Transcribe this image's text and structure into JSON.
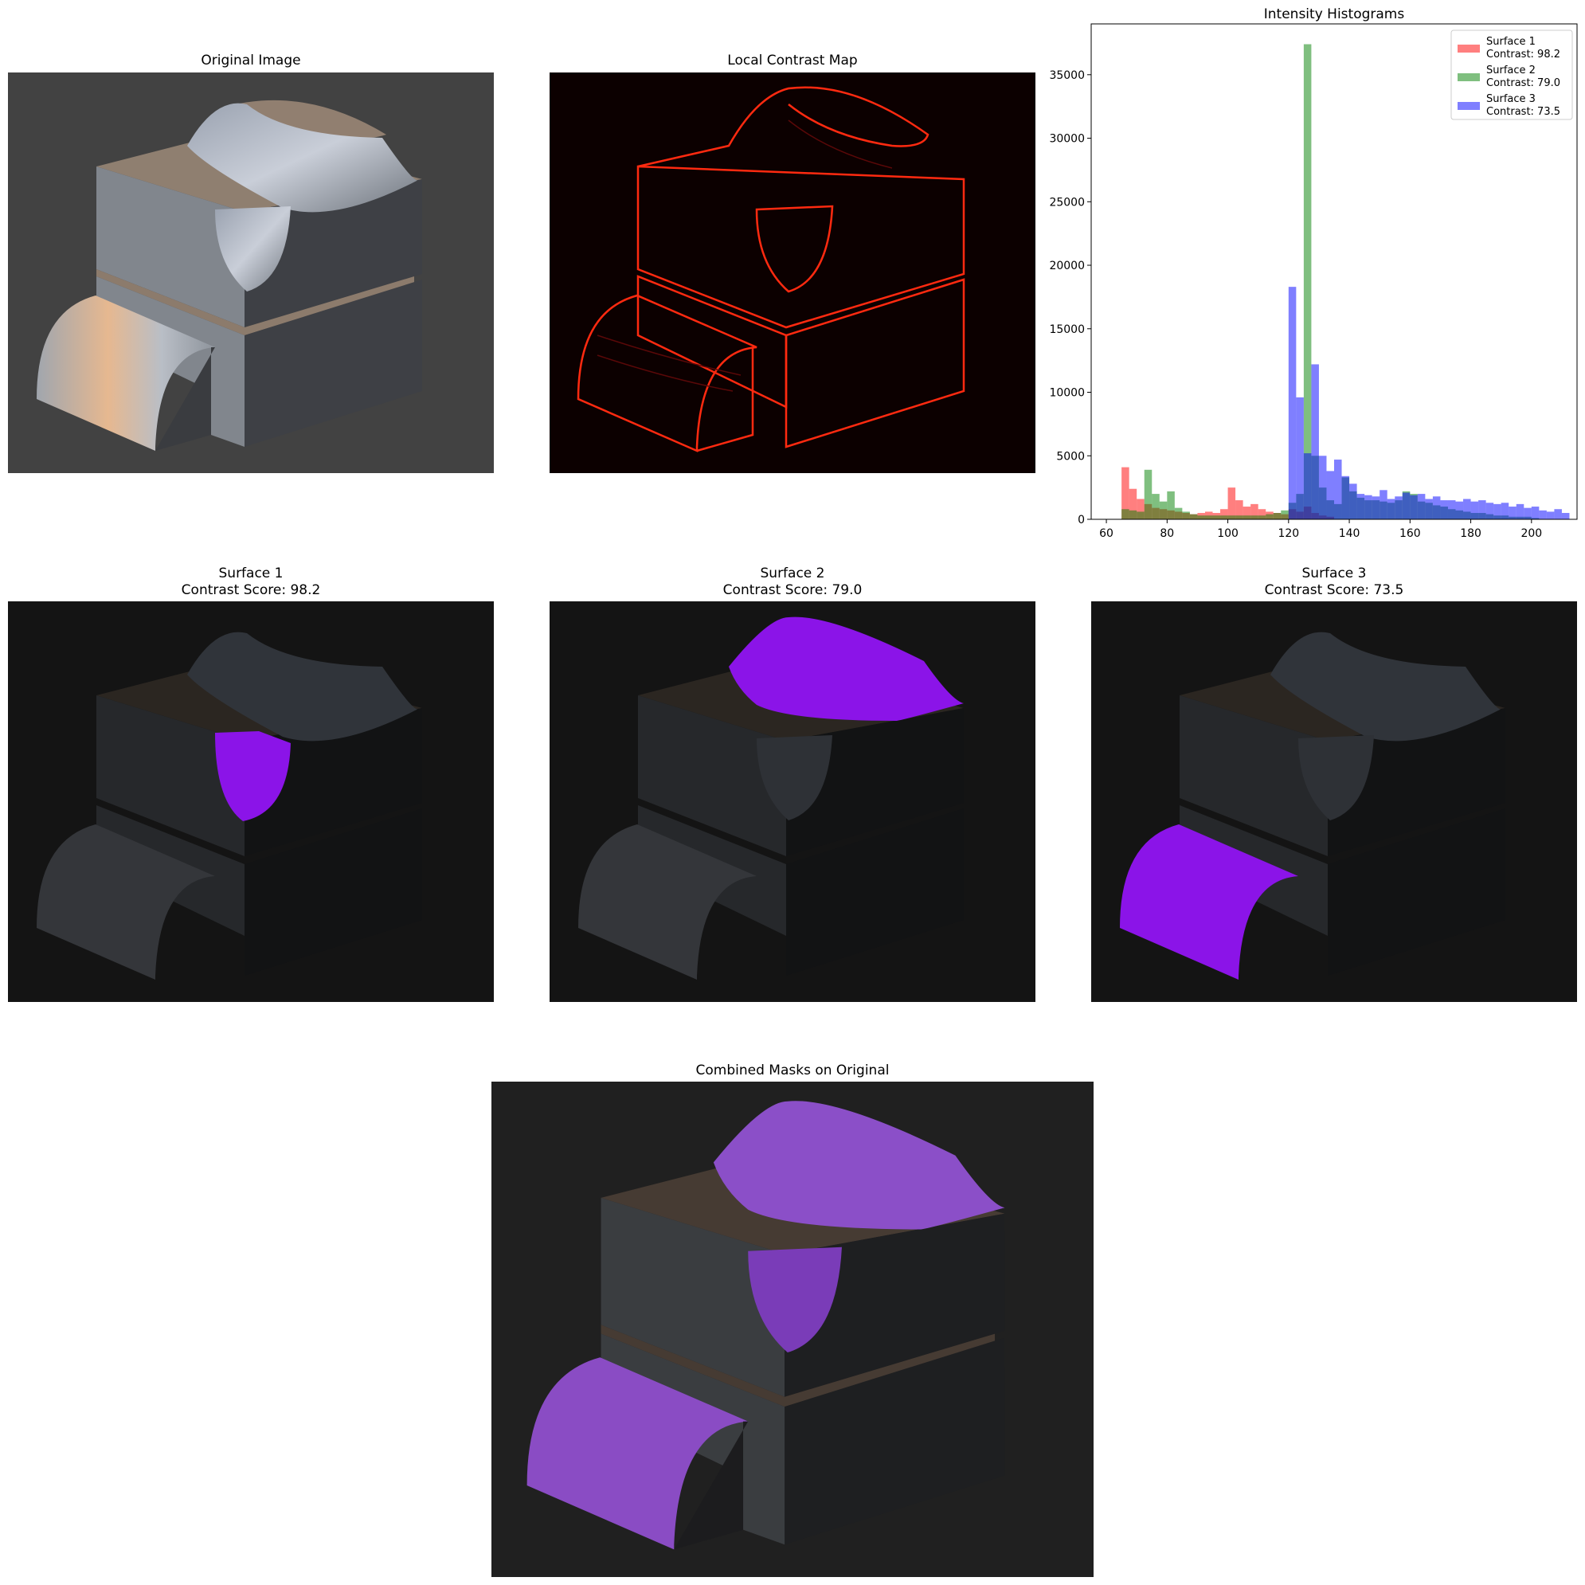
{
  "panels": {
    "original": {
      "title": "Original Image"
    },
    "contrast": {
      "title": "Local Contrast Map"
    },
    "histogram": {
      "title": "Intensity Histograms"
    },
    "surface1": {
      "title": "Surface 1",
      "subtitle": "Contrast Score: 98.2"
    },
    "surface2": {
      "title": "Surface 2",
      "subtitle": "Contrast Score: 79.0"
    },
    "surface3": {
      "title": "Surface 3",
      "subtitle": "Contrast Score: 73.5"
    },
    "combined": {
      "title": "Combined Masks on Original"
    }
  },
  "colors": {
    "mask": "#8b14e8",
    "surface1": "#ff0000",
    "surface2": "#008000",
    "surface3": "#0000ff",
    "contrast_edge": "#ff2a10"
  },
  "chart_data": {
    "type": "bar",
    "title": "Intensity Histograms",
    "xlabel": "",
    "ylabel": "",
    "xlim": [
      55,
      215
    ],
    "ylim": [
      0,
      39000
    ],
    "xticks": [
      60,
      80,
      100,
      120,
      140,
      160,
      180,
      200
    ],
    "yticks": [
      0,
      5000,
      10000,
      15000,
      20000,
      25000,
      30000,
      35000
    ],
    "legend_position": "top-right",
    "bin_width": 2.5,
    "series": [
      {
        "name": "Surface 1",
        "label": "Contrast: 98.2",
        "color": "#ff0000",
        "bins": [
          [
            65,
            4100
          ],
          [
            67.5,
            2400
          ],
          [
            70,
            1600
          ],
          [
            72.5,
            1200
          ],
          [
            75,
            900
          ],
          [
            77.5,
            800
          ],
          [
            80,
            700
          ],
          [
            82.5,
            600
          ],
          [
            85,
            500
          ],
          [
            87.5,
            400
          ],
          [
            90,
            500
          ],
          [
            92.5,
            600
          ],
          [
            95,
            500
          ],
          [
            97.5,
            800
          ],
          [
            100,
            2500
          ],
          [
            102.5,
            1500
          ],
          [
            105,
            1000
          ],
          [
            107.5,
            1200
          ],
          [
            110,
            800
          ],
          [
            112.5,
            600
          ],
          [
            115,
            500
          ],
          [
            117.5,
            400
          ],
          [
            120,
            800
          ],
          [
            122.5,
            600
          ],
          [
            125,
            1000
          ],
          [
            127.5,
            500
          ],
          [
            130,
            300
          ],
          [
            132.5,
            200
          ]
        ]
      },
      {
        "name": "Surface 2",
        "label": "Contrast: 79.0",
        "color": "#008000",
        "bins": [
          [
            65,
            800
          ],
          [
            67.5,
            700
          ],
          [
            70,
            600
          ],
          [
            72.5,
            3900
          ],
          [
            75,
            2000
          ],
          [
            77.5,
            1400
          ],
          [
            80,
            2200
          ],
          [
            82.5,
            900
          ],
          [
            85,
            600
          ],
          [
            87.5,
            400
          ],
          [
            90,
            300
          ],
          [
            92.5,
            300
          ],
          [
            95,
            300
          ],
          [
            97.5,
            300
          ],
          [
            100,
            300
          ],
          [
            102.5,
            300
          ],
          [
            105,
            300
          ],
          [
            107.5,
            300
          ],
          [
            110,
            300
          ],
          [
            112.5,
            400
          ],
          [
            115,
            500
          ],
          [
            117.5,
            700
          ],
          [
            120,
            1300
          ],
          [
            122.5,
            2000
          ],
          [
            125,
            37400
          ],
          [
            127.5,
            5000
          ],
          [
            130,
            2500
          ],
          [
            132.5,
            1500
          ],
          [
            135,
            1200
          ],
          [
            137.5,
            3300
          ],
          [
            140,
            2200
          ],
          [
            142.5,
            1700
          ],
          [
            145,
            1500
          ],
          [
            147.5,
            1500
          ],
          [
            150,
            1400
          ],
          [
            152.5,
            1300
          ],
          [
            155,
            1500
          ],
          [
            157.5,
            2200
          ],
          [
            160,
            2000
          ],
          [
            162.5,
            1400
          ],
          [
            165,
            1300
          ],
          [
            167.5,
            1100
          ],
          [
            170,
            1000
          ],
          [
            172.5,
            800
          ],
          [
            175,
            700
          ],
          [
            177.5,
            600
          ],
          [
            180,
            500
          ],
          [
            182.5,
            500
          ],
          [
            185,
            400
          ],
          [
            187.5,
            300
          ],
          [
            190,
            300
          ],
          [
            192.5,
            200
          ],
          [
            195,
            200
          ],
          [
            197.5,
            200
          ],
          [
            200,
            100
          ]
        ]
      },
      {
        "name": "Surface 3",
        "label": "Contrast: 73.5",
        "color": "#0000ff",
        "bins": [
          [
            120,
            18300
          ],
          [
            122.5,
            9600
          ],
          [
            125,
            5200
          ],
          [
            127.5,
            12200
          ],
          [
            130,
            5000
          ],
          [
            132.5,
            3800
          ],
          [
            135,
            4700
          ],
          [
            137.5,
            3400
          ],
          [
            140,
            2800
          ],
          [
            142.5,
            2000
          ],
          [
            145,
            1900
          ],
          [
            147.5,
            1800
          ],
          [
            150,
            2300
          ],
          [
            152.5,
            1600
          ],
          [
            155,
            1800
          ],
          [
            157.5,
            2100
          ],
          [
            160,
            1900
          ],
          [
            162.5,
            2000
          ],
          [
            165,
            1600
          ],
          [
            167.5,
            1800
          ],
          [
            170,
            1500
          ],
          [
            172.5,
            1500
          ],
          [
            175,
            1400
          ],
          [
            177.5,
            1600
          ],
          [
            180,
            1400
          ],
          [
            182.5,
            1500
          ],
          [
            185,
            1300
          ],
          [
            187.5,
            1200
          ],
          [
            190,
            1300
          ],
          [
            192.5,
            1000
          ],
          [
            195,
            1200
          ],
          [
            197.5,
            900
          ],
          [
            200,
            1000
          ],
          [
            202.5,
            700
          ],
          [
            205,
            600
          ],
          [
            207.5,
            800
          ],
          [
            210,
            500
          ]
        ]
      }
    ]
  }
}
